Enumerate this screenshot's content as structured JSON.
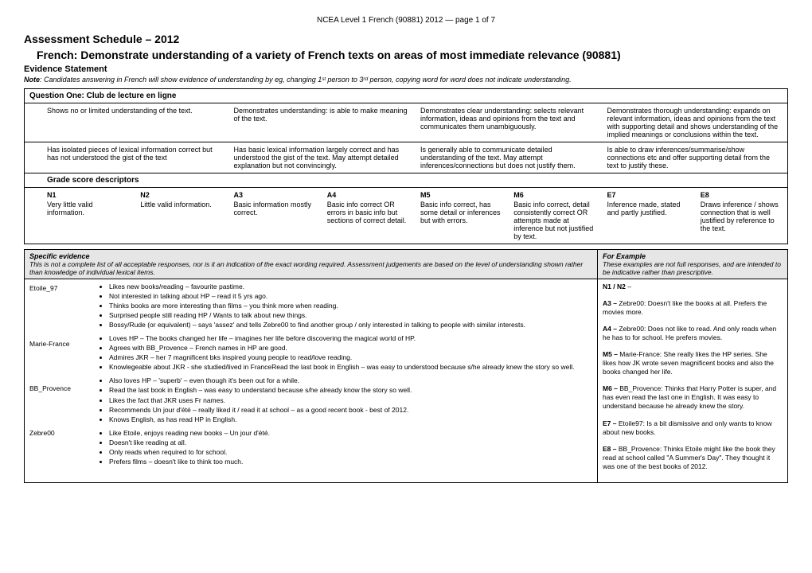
{
  "header_small": "NCEA Level 1 French (90881) 2012 — page 1 of 7",
  "title1": "Assessment Schedule – 2012",
  "title2": "French: Demonstrate understanding of a variety of French texts on areas of most immediate relevance (90881)",
  "subtitle": "Evidence Statement",
  "note_prefix": "Note",
  "note_body": ": Candidates answering in French will show evidence of understanding by eg, changing 1ˢᵗ person to 3ʳᵈ person, copying word for word does not indicate understanding.",
  "q_header": "Question One: Club de lecture en ligne",
  "cols_a": [
    "Shows no or limited understanding of the text.",
    "Demonstrates understanding: is able to make meaning of the text.",
    "Demonstrates clear understanding: selects relevant information, ideas and opinions from the text and communicates them unambiguously.",
    "Demonstrates thorough understanding: expands on relevant information, ideas and opinions from the text with supporting detail and shows understanding of the implied meanings or conclusions within the text."
  ],
  "cols_b": [
    "Has isolated pieces of lexical information correct but has not understood the gist of the text",
    "Has basic lexical information largely correct and has understood the gist of the text. May attempt detailed explanation but not convincingly.",
    "Is generally able to communicate detailed understanding of the text. May attempt inferences/connections but does not justify them.",
    "Is able to draw inferences/summarise/show connections etc and offer supporting detail from the text to justify these."
  ],
  "gsd_header": "Grade score descriptors",
  "grades": [
    {
      "n": "N1",
      "d": "Very little valid information."
    },
    {
      "n": "N2",
      "d": "Little valid information."
    },
    {
      "n": "A3",
      "d": "Basic information mostly correct."
    },
    {
      "n": "A4",
      "d": "Basic info correct OR errors in basic info but sections of correct detail."
    },
    {
      "n": "M5",
      "d": "Basic info correct, has some detail or inferences but with errors."
    },
    {
      "n": "M6",
      "d": "Basic info correct, detail consistently correct OR attempts made at inference but not justified by text."
    },
    {
      "n": "E7",
      "d": "Inference made, stated and partly justified."
    },
    {
      "n": "E8",
      "d": "Draws inference / shows connection that is well justified by reference to the text."
    }
  ],
  "ev_h1": "Specific evidence",
  "ev_b1": "This is not a complete list of all acceptable responses, nor is it an indication of the exact wording required. Assessment judgements are based on the level of understanding shown rather than knowledge of individual lexical items.",
  "ev_h2": "For Example",
  "ev_b2": "These examples are not full responses, and are intended to be indicative rather than prescriptive.",
  "names": [
    "Etoile_97",
    "Marie-France",
    "BB_Provence",
    "Zebre00"
  ],
  "bullets": {
    "g1": [
      "Likes new books/reading – favourite pastime.",
      "Not interested in talking about HP – read it 5 yrs ago.",
      "Thinks books are more interesting than films – you think more when reading.",
      "Surprised people still reading HP / Wants to talk about new things.",
      "Bossy/Rude (or equivalent) – says 'assez' and tells Zebre00 to find another group / only interested in talking to people with similar interests."
    ],
    "g2": [
      "Loves HP – The books changed her life – imagines her life before discovering the magical world of HP.",
      "Agrees with  BB_Provence – French names in HP are good.",
      "Admires JKR – her 7 magnificent bks inspired young people to read/love reading.",
      "Knowlegeable about JKR - she studied/lived in FranceRead the last book in English – was easy to understood because s/he already knew the story so well."
    ],
    "g3": [
      "Also loves HP – 'superb' –  even  though it's been out for a while.",
      "Read the last book in English – was easy to understand because s/he already know the story so well.",
      "Likes the fact that JKR uses Fr names.",
      "Recommends Un jour d'été – really liked it / read it at school – as a good recent book - best of 2012.",
      "Knows English, as has read HP in English."
    ],
    "g4": [
      "Like Etoile, enjoys reading new books – Un jour d'été.",
      "Doesn't like reading at all.",
      "Only reads when required to for school.",
      "Prefers films – doesn't like to think too much."
    ]
  },
  "ex": [
    {
      "l": "N1 / N2",
      "t": " –"
    },
    {
      "l": "A3 –",
      "t": " Zebre00: Doesn't like the books at all. Prefers the movies more."
    },
    {
      "l": "A4 –",
      "t": " Zebre00: Does not like to read. And only reads when he has to for school. He prefers movies."
    },
    {
      "l": "M5 –",
      "t": " Marie-France: She really likes the HP series. She likes how JK wrote seven magnificent books and also the books changed her life."
    },
    {
      "l": "M6 –",
      "t": " BB_Provence: Thinks that Harry Potter is super, and has even read the last one in English. It was easy to understand because he already knew the story."
    },
    {
      "l": "E7 –",
      "t": " Etoile97: Is a bit dismissive and only wants to know about new books."
    },
    {
      "l": "E8 –",
      "t": " BB_Provence: Thinks Etoile might like the book they read at school called \"A Summer's Day\". They thought it was one of the best books of 2012."
    }
  ]
}
